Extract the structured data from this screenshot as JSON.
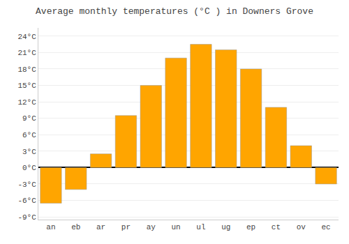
{
  "chart_data": {
    "type": "bar",
    "title": "Average monthly temperatures (°C ) in Downers Grove",
    "categories": [
      "an",
      "eb",
      "ar",
      "pr",
      "ay",
      "un",
      "ul",
      "ug",
      "ep",
      "ct",
      "ov",
      "ec"
    ],
    "values": [
      -6.5,
      -4.0,
      2.5,
      9.5,
      15.0,
      20.0,
      22.5,
      21.5,
      18.0,
      11.0,
      4.0,
      -3.0
    ],
    "color": "#FFA500",
    "ylim": [
      -9.5,
      25.5
    ],
    "yticks": [
      {
        "value": -9,
        "label": "-9°C"
      },
      {
        "value": -6,
        "label": "-6°C"
      },
      {
        "value": -3,
        "label": "-3°C"
      },
      {
        "value": 0,
        "label": "0°C"
      },
      {
        "value": 3,
        "label": "3°C"
      },
      {
        "value": 6,
        "label": "6°C"
      },
      {
        "value": 9,
        "label": "9°C"
      },
      {
        "value": 12,
        "label": "12°C"
      },
      {
        "value": 15,
        "label": "15°C"
      },
      {
        "value": 18,
        "label": "18°C"
      },
      {
        "value": 21,
        "label": "21°C"
      },
      {
        "value": 24,
        "label": "24°C"
      }
    ],
    "grid": true
  }
}
